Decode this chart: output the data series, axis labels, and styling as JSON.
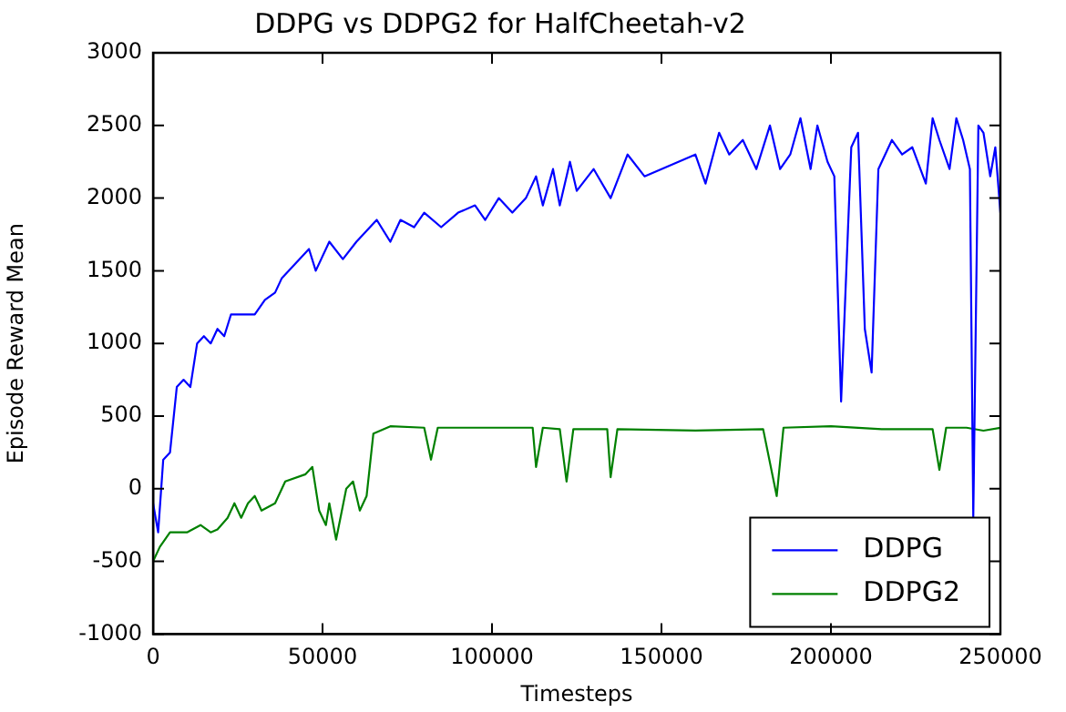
{
  "chart_data": {
    "type": "line",
    "title": "DDPG vs DDPG2 for HalfCheetah-v2",
    "xlabel": "Timesteps",
    "ylabel": "Episode Reward Mean",
    "xlim": [
      0,
      250000
    ],
    "xticks": [
      0,
      50000,
      100000,
      150000,
      200000,
      250000
    ],
    "ylim": [
      -1000,
      3000
    ],
    "yticks": [
      -1000,
      -500,
      0,
      500,
      1000,
      1500,
      2000,
      2500,
      3000
    ],
    "grid": false,
    "legend": "bottom right",
    "marker": "none",
    "line_style": "solid",
    "series": [
      {
        "name": "DDPG",
        "color": "#0000ff",
        "x": [
          0,
          1500,
          3000,
          5000,
          7000,
          9000,
          11000,
          13000,
          15000,
          17000,
          19000,
          21000,
          23000,
          27000,
          30000,
          33000,
          36000,
          38000,
          40000,
          42000,
          46000,
          48000,
          52000,
          56000,
          60000,
          64000,
          66000,
          70000,
          73000,
          77000,
          80000,
          85000,
          90000,
          95000,
          98000,
          102000,
          106000,
          110000,
          113000,
          115000,
          118000,
          120000,
          123000,
          125000,
          130000,
          135000,
          140000,
          145000,
          150000,
          155000,
          160000,
          163000,
          167000,
          170000,
          174000,
          178000,
          182000,
          185000,
          188000,
          191000,
          194000,
          196000,
          199000,
          201000,
          203000,
          206000,
          208000,
          210000,
          212000,
          214000,
          218000,
          221000,
          224000,
          228000,
          230000,
          232000,
          235000,
          237000,
          239000,
          241000,
          242000,
          243500,
          245000,
          247000,
          248500,
          250000
        ],
        "values": [
          -100,
          -300,
          200,
          250,
          700,
          750,
          700,
          1000,
          1050,
          1000,
          1100,
          1050,
          1200,
          1200,
          1200,
          1300,
          1350,
          1450,
          1500,
          1550,
          1650,
          1500,
          1700,
          1580,
          1700,
          1800,
          1850,
          1700,
          1850,
          1800,
          1900,
          1800,
          1900,
          1950,
          1850,
          2000,
          1900,
          2000,
          2150,
          1950,
          2200,
          1950,
          2250,
          2050,
          2200,
          2000,
          2300,
          2150,
          2200,
          2250,
          2300,
          2100,
          2450,
          2300,
          2400,
          2200,
          2500,
          2200,
          2300,
          2550,
          2200,
          2500,
          2250,
          2150,
          600,
          2350,
          2450,
          1100,
          800,
          2200,
          2400,
          2300,
          2350,
          2100,
          2550,
          2400,
          2200,
          2550,
          2400,
          2200,
          -200,
          2500,
          2450,
          2150,
          2350,
          1900
        ]
      },
      {
        "name": "DDPG2",
        "color": "#008000",
        "x": [
          0,
          2000,
          5000,
          10000,
          14000,
          17000,
          19000,
          22000,
          24000,
          26000,
          28000,
          30000,
          32000,
          36000,
          39000,
          45000,
          47000,
          49000,
          51000,
          52000,
          54000,
          57000,
          59000,
          61000,
          63000,
          65000,
          70000,
          80000,
          82000,
          84000,
          100000,
          112000,
          113000,
          115000,
          120000,
          122000,
          124000,
          134000,
          135000,
          137000,
          160000,
          180000,
          184000,
          186000,
          200000,
          215000,
          230000,
          232000,
          234000,
          240000,
          245000,
          250000
        ],
        "values": [
          -500,
          -400,
          -300,
          -300,
          -250,
          -300,
          -280,
          -200,
          -100,
          -200,
          -100,
          -50,
          -150,
          -100,
          50,
          100,
          150,
          -150,
          -250,
          -100,
          -350,
          0,
          50,
          -150,
          -50,
          380,
          430,
          420,
          200,
          420,
          420,
          420,
          150,
          420,
          410,
          50,
          410,
          410,
          80,
          410,
          400,
          410,
          -50,
          420,
          430,
          410,
          410,
          130,
          420,
          420,
          400,
          420
        ]
      }
    ]
  }
}
